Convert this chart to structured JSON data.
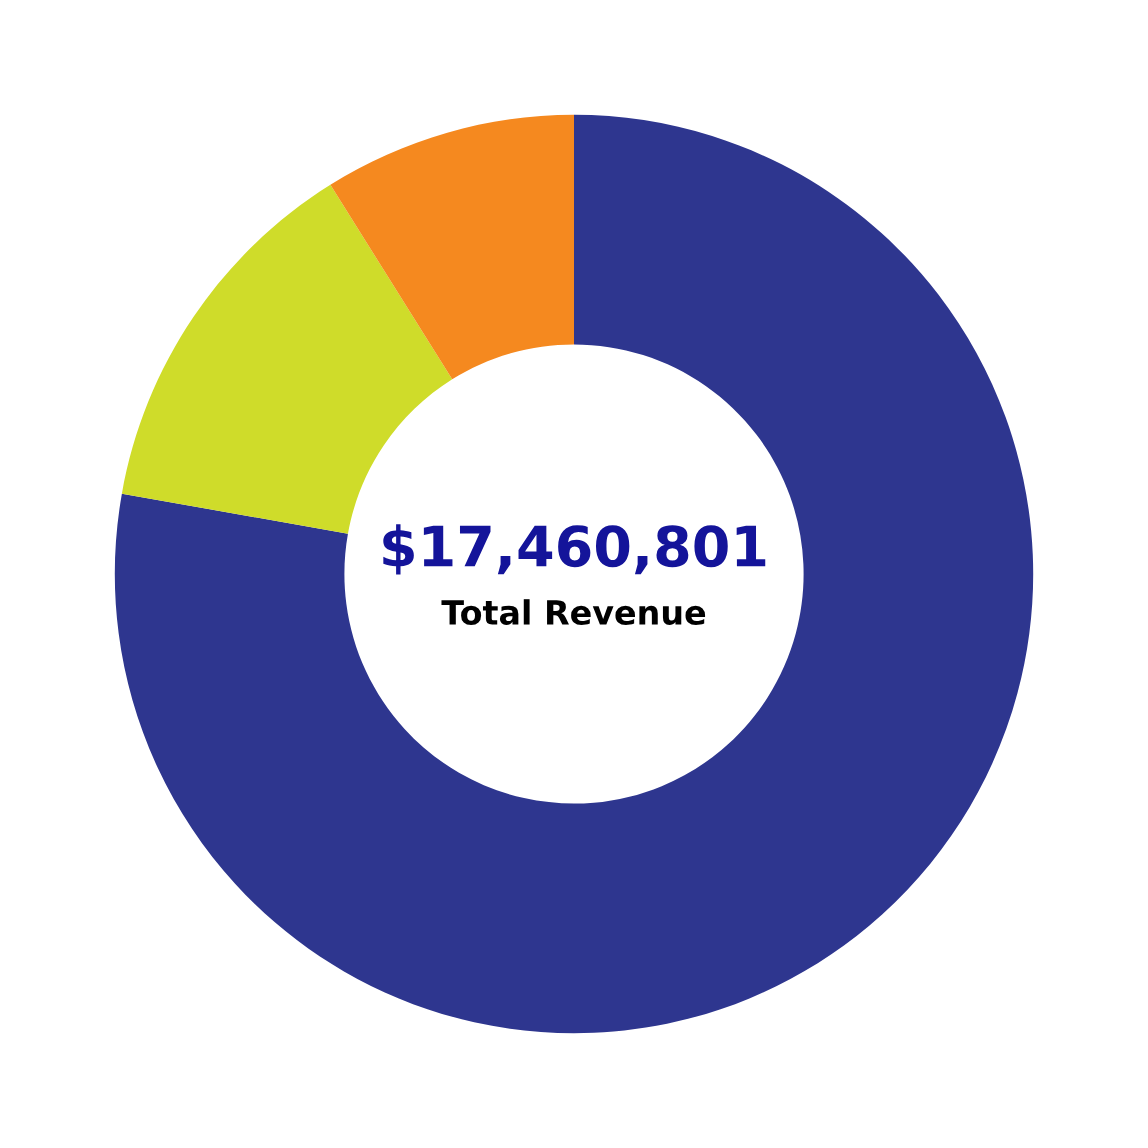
{
  "chart_data": {
    "type": "donut",
    "categories": [
      null,
      null,
      null
    ],
    "values": [
      77.8,
      13.3,
      8.9
    ],
    "colors": [
      "#2e368f",
      "#cfdc2a",
      "#f5891f"
    ],
    "annotations": [
      "$17,460,801",
      "Total Revenue"
    ]
  }
}
